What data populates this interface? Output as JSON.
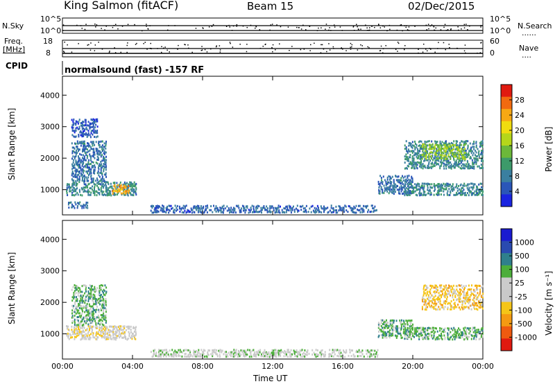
{
  "header": {
    "station": "King Salmon (fitACF)",
    "beam": "Beam 15",
    "date": "02/Dec/2015"
  },
  "aux_panels": {
    "nsky_label": "N.Sky",
    "nsky_ticks": [
      "10^5",
      "10^0"
    ],
    "nsearch_label": "N.Search",
    "nsearch_ticks": [
      "10^5",
      "10^0"
    ],
    "nsearch_dots": "......",
    "freq_label": "Freq.",
    "freq_unit": "[MHz]",
    "freq_ticks": [
      "18",
      "8"
    ],
    "nave_label": "Nave",
    "nave_ticks": [
      "60",
      "0"
    ],
    "nave_dots": "....",
    "cpid_label": "CPID",
    "cpid_text": "normalsound (fast) -157 RF"
  },
  "colors": {
    "power": [
      "#1a24e0",
      "#2a56b8",
      "#3a7fa0",
      "#3d9a6a",
      "#6cb83a",
      "#b5d61a",
      "#f0dc10",
      "#f7a814",
      "#f26a10",
      "#e01a10"
    ],
    "velocity": [
      "#1a1ad0",
      "#2a4ab0",
      "#2f7f8c",
      "#4cae3a",
      "#cccccc",
      "#c8c8c8",
      "#f5c518",
      "#f59a12",
      "#ef5a10",
      "#e01a10"
    ]
  },
  "chart_data": [
    {
      "type": "heatmap",
      "panel": "power",
      "xlabel": "",
      "ylabel": "Slant Range [km]",
      "yticks": [
        "1000",
        "2000",
        "3000",
        "4000"
      ],
      "ylim": [
        200,
        4600
      ],
      "xlim_hours": [
        0,
        24
      ],
      "colorbar_label": "Power [dB]",
      "colorbar_ticks": [
        "4",
        "8",
        "12",
        "16",
        "20",
        "24",
        "28"
      ],
      "colorbar_range": [
        0,
        32
      ],
      "regions": [
        {
          "t": [
            0.2,
            4.2
          ],
          "r": [
            850,
            1300
          ],
          "v": 9
        },
        {
          "t": [
            2.8,
            3.8
          ],
          "r": [
            900,
            1200
          ],
          "v": 24
        },
        {
          "t": [
            0.3,
            1.5
          ],
          "r": [
            450,
            650
          ],
          "v": 7
        },
        {
          "t": [
            0.5,
            2.5
          ],
          "r": [
            1300,
            2600
          ],
          "v": 7
        },
        {
          "t": [
            0.5,
            2.0
          ],
          "r": [
            2700,
            3300
          ],
          "v": 5
        },
        {
          "t": [
            5,
            18
          ],
          "r": [
            300,
            550
          ],
          "v": 6
        },
        {
          "t": [
            18,
            20
          ],
          "r": [
            900,
            1500
          ],
          "v": 7
        },
        {
          "t": [
            19.5,
            24
          ],
          "r": [
            850,
            1250
          ],
          "v": 9
        },
        {
          "t": [
            19.5,
            24
          ],
          "r": [
            1700,
            2600
          ],
          "v": 9
        },
        {
          "t": [
            20.5,
            23
          ],
          "r": [
            2000,
            2500
          ],
          "v": 16
        }
      ]
    },
    {
      "type": "heatmap",
      "panel": "velocity",
      "xlabel": "Time UT",
      "ylabel": "Slant Range [km]",
      "yticks": [
        "1000",
        "2000",
        "3000",
        "4000"
      ],
      "ylim": [
        200,
        4600
      ],
      "xlim_hours": [
        0,
        24
      ],
      "xticks": [
        "00:00",
        "04:00",
        "08:00",
        "12:00",
        "16:00",
        "20:00",
        "00:00"
      ],
      "colorbar_label": "Velocity [m s⁻¹]",
      "colorbar_ticks": [
        "1000",
        "500",
        "100",
        "25",
        "-25",
        "-100",
        "-500",
        "-1000"
      ],
      "regions": [
        {
          "t": [
            0.2,
            4.2
          ],
          "r": [
            850,
            1300
          ],
          "v": "-100"
        },
        {
          "t": [
            0.5,
            2.5
          ],
          "r": [
            1300,
            2600
          ],
          "v": "25"
        },
        {
          "t": [
            5,
            18
          ],
          "r": [
            300,
            550
          ],
          "v": "-25"
        },
        {
          "t": [
            18,
            20
          ],
          "r": [
            900,
            1500
          ],
          "v": "25"
        },
        {
          "t": [
            19.5,
            24
          ],
          "r": [
            850,
            1250
          ],
          "v": "25"
        },
        {
          "t": [
            20.5,
            24
          ],
          "r": [
            1800,
            2600
          ],
          "v": "-500"
        }
      ]
    }
  ]
}
